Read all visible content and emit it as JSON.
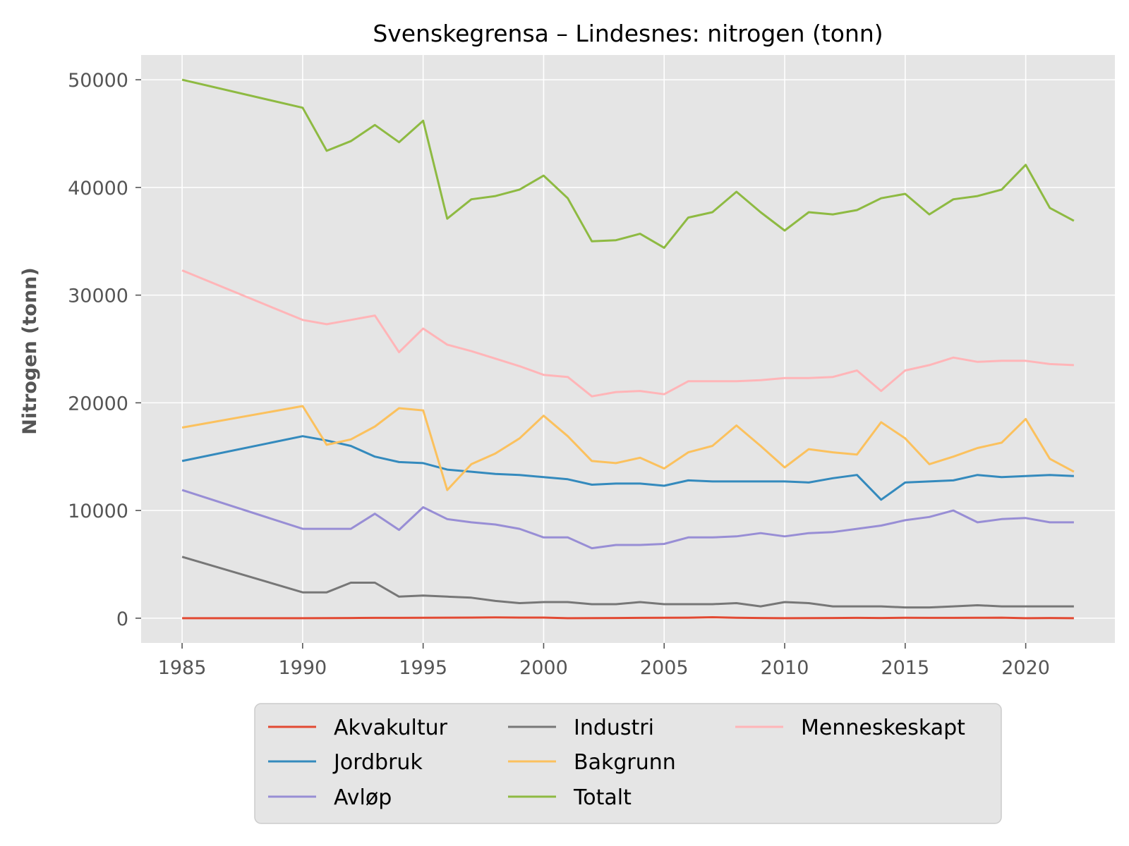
{
  "chart_data": {
    "type": "line",
    "title": "Svenskegrensa – Lindesnes: nitrogen (tonn)",
    "xlabel": "",
    "ylabel": "Nitrogen (tonn)",
    "xlim": [
      1983.3,
      2023.7
    ],
    "ylim": [
      -2300,
      52300
    ],
    "xticks": [
      1985,
      1990,
      1995,
      2000,
      2005,
      2010,
      2015,
      2020
    ],
    "yticks": [
      0,
      10000,
      20000,
      30000,
      40000,
      50000
    ],
    "grid": true,
    "legend_position": "below",
    "x": [
      1985,
      1990,
      1991,
      1992,
      1993,
      1994,
      1995,
      1996,
      1997,
      1998,
      1999,
      2000,
      2001,
      2002,
      2003,
      2004,
      2005,
      2006,
      2007,
      2008,
      2009,
      2010,
      2011,
      2012,
      2013,
      2014,
      2015,
      2016,
      2017,
      2018,
      2019,
      2020,
      2021,
      2022
    ],
    "series": [
      {
        "name": "Akvakultur",
        "color": "#E24A33",
        "values": [
          0,
          0,
          10,
          20,
          30,
          30,
          40,
          50,
          60,
          70,
          60,
          60,
          0,
          10,
          20,
          30,
          40,
          50,
          90,
          40,
          20,
          0,
          10,
          20,
          30,
          20,
          40,
          30,
          30,
          40,
          50,
          0,
          20,
          0
        ]
      },
      {
        "name": "Jordbruk",
        "color": "#348ABD",
        "values": [
          14600,
          16900,
          16500,
          16000,
          15000,
          14500,
          14400,
          13800,
          13600,
          13400,
          13300,
          13100,
          12900,
          12400,
          12500,
          12500,
          12300,
          12800,
          12700,
          12700,
          12700,
          12700,
          12600,
          13000,
          13300,
          11000,
          12600,
          12700,
          12800,
          13300,
          13100,
          13200,
          13300,
          13200
        ]
      },
      {
        "name": "Avløp",
        "color": "#988ED5",
        "values": [
          11900,
          8300,
          8300,
          8300,
          9700,
          8200,
          10300,
          9200,
          8900,
          8700,
          8300,
          7500,
          7500,
          6500,
          6800,
          6800,
          6900,
          7500,
          7500,
          7600,
          7900,
          7600,
          7900,
          8000,
          8300,
          8600,
          9100,
          9400,
          10000,
          8900,
          9200,
          9300,
          8900,
          8900
        ]
      },
      {
        "name": "Industri",
        "color": "#777777",
        "values": [
          5700,
          2400,
          2400,
          3300,
          3300,
          2000,
          2100,
          2000,
          1900,
          1600,
          1400,
          1500,
          1500,
          1300,
          1300,
          1500,
          1300,
          1300,
          1300,
          1400,
          1100,
          1500,
          1400,
          1100,
          1100,
          1100,
          1000,
          1000,
          1100,
          1200,
          1100,
          1100,
          1100,
          1100
        ]
      },
      {
        "name": "Bakgrunn",
        "color": "#FBC15E",
        "values": [
          17700,
          19700,
          16100,
          16600,
          17800,
          19500,
          19300,
          11900,
          14300,
          15300,
          16700,
          18800,
          16900,
          14600,
          14400,
          14900,
          13900,
          15400,
          16000,
          17900,
          16000,
          14000,
          15700,
          15400,
          15200,
          18200,
          16700,
          14300,
          15000,
          15800,
          16300,
          18500,
          14800,
          13600
        ]
      },
      {
        "name": "Totalt",
        "color": "#8EBA42",
        "values": [
          50000,
          47400,
          43400,
          44300,
          45800,
          44200,
          46200,
          37100,
          38900,
          39200,
          39800,
          41100,
          39000,
          35000,
          35100,
          35700,
          34400,
          37200,
          37700,
          39600,
          37700,
          36000,
          37700,
          37500,
          37900,
          39000,
          39400,
          37500,
          38900,
          39200,
          39800,
          42100,
          38100,
          36900
        ]
      },
      {
        "name": "Menneskeskapt",
        "color": "#FFB5B8",
        "values": [
          32300,
          27700,
          27300,
          27700,
          28100,
          24700,
          26900,
          25400,
          24800,
          24100,
          23400,
          22600,
          22400,
          20600,
          21000,
          21100,
          20800,
          22000,
          22000,
          22000,
          22100,
          22300,
          22300,
          22400,
          23000,
          21100,
          23000,
          23500,
          24200,
          23800,
          23900,
          23900,
          23600,
          23500
        ]
      }
    ]
  }
}
